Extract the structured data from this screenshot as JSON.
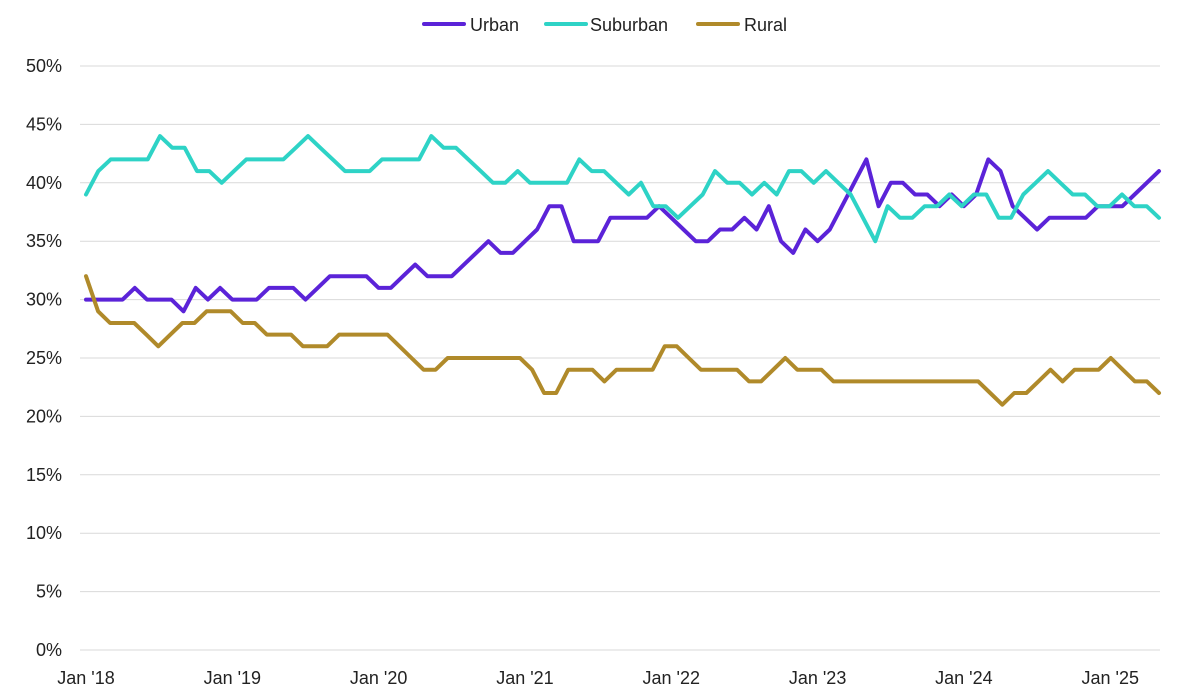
{
  "chart_data": {
    "type": "line",
    "title": "",
    "xlabel": "",
    "ylabel": "",
    "ylim": [
      0,
      50
    ],
    "yticks": [
      0,
      5,
      10,
      15,
      20,
      25,
      30,
      35,
      40,
      45,
      50
    ],
    "ytick_labels": [
      "0%",
      "5%",
      "10%",
      "15%",
      "20%",
      "25%",
      "30%",
      "35%",
      "40%",
      "45%",
      "50%"
    ],
    "xticks": [
      {
        "label": "Jan '18",
        "month_index": 0
      },
      {
        "label": "Jan '19",
        "month_index": 12
      },
      {
        "label": "Jan '20",
        "month_index": 24
      },
      {
        "label": "Jan '21",
        "month_index": 36
      },
      {
        "label": "Jan '22",
        "month_index": 48
      },
      {
        "label": "Jan '23",
        "month_index": 60
      },
      {
        "label": "Jan '24",
        "month_index": 72
      },
      {
        "label": "Jan '25",
        "month_index": 84
      }
    ],
    "x_range_months": [
      0,
      90
    ],
    "grid": "horizontal",
    "legend_placement": "top-center",
    "series": [
      {
        "name": "Urban",
        "color": "#5b23d8",
        "values": [
          30,
          30,
          30,
          30,
          31,
          30,
          30,
          30,
          29,
          31,
          30,
          31,
          30,
          30,
          30,
          31,
          31,
          31,
          30,
          31,
          32,
          32,
          32,
          32,
          31,
          31,
          32,
          33,
          32,
          32,
          32,
          33,
          34,
          35,
          34,
          34,
          35,
          36,
          38,
          38,
          35,
          35,
          35,
          37,
          37,
          37,
          37,
          38,
          37,
          36,
          35,
          35,
          36,
          36,
          37,
          36,
          38,
          35,
          34,
          36,
          35,
          36,
          38,
          40,
          42,
          38,
          40,
          40,
          39,
          39,
          38,
          39,
          38,
          39,
          42,
          41,
          38,
          37,
          36,
          37,
          37,
          37,
          37,
          38,
          38,
          38,
          39,
          40,
          41
        ]
      },
      {
        "name": "Suburban",
        "color": "#2ed3c6",
        "values": [
          39,
          41,
          42,
          42,
          42,
          42,
          44,
          43,
          43,
          41,
          41,
          40,
          41,
          42,
          42,
          42,
          42,
          43,
          44,
          43,
          42,
          41,
          41,
          41,
          42,
          42,
          42,
          42,
          44,
          43,
          43,
          42,
          41,
          40,
          40,
          41,
          40,
          40,
          40,
          40,
          42,
          41,
          41,
          40,
          39,
          40,
          38,
          38,
          37,
          38,
          39,
          41,
          40,
          40,
          39,
          40,
          39,
          41,
          41,
          40,
          41,
          40,
          39,
          37,
          35,
          38,
          37,
          37,
          38,
          38,
          39,
          38,
          39,
          39,
          37,
          37,
          39,
          40,
          41,
          40,
          39,
          39,
          38,
          38,
          39,
          38,
          38,
          37
        ]
      },
      {
        "name": "Rural",
        "color": "#b08a2a",
        "values": [
          32,
          29,
          28,
          28,
          28,
          27,
          26,
          27,
          28,
          28,
          29,
          29,
          29,
          28,
          28,
          27,
          27,
          27,
          26,
          26,
          26,
          27,
          27,
          27,
          27,
          27,
          26,
          25,
          24,
          24,
          25,
          25,
          25,
          25,
          25,
          25,
          25,
          24,
          22,
          22,
          24,
          24,
          24,
          23,
          24,
          24,
          24,
          24,
          26,
          26,
          25,
          24,
          24,
          24,
          24,
          23,
          23,
          24,
          25,
          24,
          24,
          24,
          23,
          23,
          23,
          23,
          23,
          23,
          23,
          23,
          23,
          23,
          23,
          23,
          23,
          22,
          21,
          22,
          22,
          23,
          24,
          23,
          24,
          24,
          24,
          25,
          24,
          23,
          23,
          22
        ]
      }
    ]
  }
}
